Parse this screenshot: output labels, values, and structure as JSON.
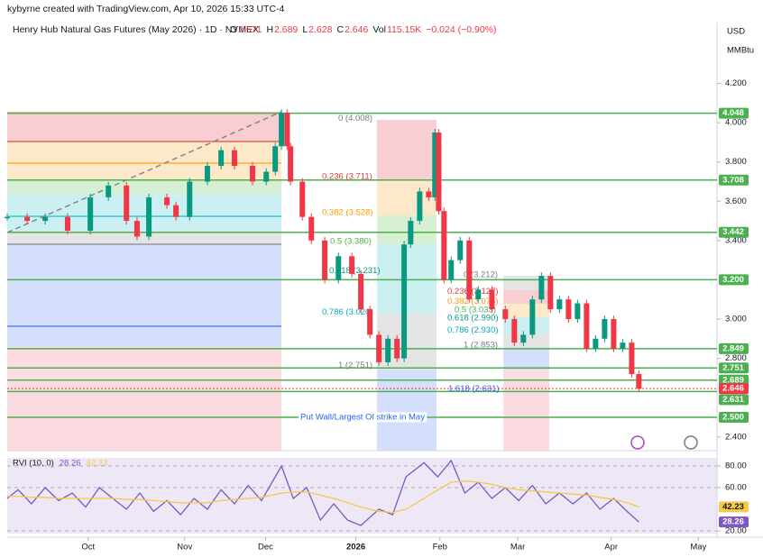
{
  "header": {
    "credit": "kybyrne created with TradingView.com, Apr 10, 2026 15:33 UTC-4",
    "symbol": "Henry Hub Natural Gas Futures (May 2026) · 1D · NYMEX",
    "ohlc": [
      {
        "label": "O",
        "value": "2.671"
      },
      {
        "label": "H",
        "value": "2.689"
      },
      {
        "label": "L",
        "value": "2.628"
      },
      {
        "label": "C",
        "value": "2.646"
      },
      {
        "label": "Vol",
        "value": "115.15K"
      },
      {
        "label": "",
        "value": "−0.024 (−0.90%)"
      }
    ],
    "currency": "USD",
    "unit": "MMBtu"
  },
  "chart_data": [
    {
      "type": "candle-line",
      "x": [
        0,
        6.4,
        12.2,
        19.4,
        26.7,
        32.5,
        38.3,
        41.7,
        45.5,
        51.3,
        54.2,
        58.6,
        64.3,
        68.7,
        73.0,
        78.8,
        83.2,
        86.1,
        88.1,
        89.9,
        91.0,
        94.8,
        97.7,
        102.0,
        106.4,
        110.7,
        113.6,
        116.5,
        119.4,
        122.3,
        125.2,
        127.5,
        129.6,
        132.5,
        135.4,
        137.4,
        138.6,
        140.3,
        142.6,
        145.5,
        148.4,
        151.3,
        155.7,
        160.0,
        162.9,
        165.8,
        168.7,
        171.6,
        174.5,
        177.4,
        180.3,
        183.2,
        186.1,
        189.0,
        191.9,
        194.8,
        197.7,
        200.6,
        202.9
      ],
      "values": [
        3.52,
        3.5,
        3.52,
        3.45,
        3.62,
        3.68,
        3.5,
        3.42,
        3.62,
        3.58,
        3.52,
        3.7,
        3.78,
        3.86,
        3.78,
        3.7,
        3.75,
        3.88,
        4.05,
        3.88,
        3.7,
        3.52,
        3.4,
        3.2,
        3.32,
        3.23,
        3.05,
        2.92,
        2.78,
        2.9,
        2.8,
        3.38,
        3.5,
        3.65,
        3.62,
        3.95,
        3.55,
        3.2,
        3.3,
        3.4,
        3.1,
        3.15,
        3.05,
        3.0,
        2.88,
        2.92,
        3.1,
        3.22,
        3.05,
        3.1,
        3.0,
        3.08,
        2.85,
        2.9,
        3.0,
        2.85,
        2.88,
        2.72,
        2.646
      ],
      "up_color": "#089981",
      "down_color": "#f23645",
      "xlim": [
        0,
        228
      ],
      "xticks": [
        {
          "value": 26,
          "label": "Oct"
        },
        {
          "value": 57,
          "label": "Nov"
        },
        {
          "value": 83,
          "label": "Dec"
        },
        {
          "value": 112,
          "label": "2026"
        },
        {
          "value": 139,
          "label": "Feb"
        },
        {
          "value": 164,
          "label": "Mar"
        },
        {
          "value": 194,
          "label": "Apr"
        },
        {
          "value": 222,
          "label": "May"
        }
      ],
      "ylim": [
        2.33,
        4.51
      ],
      "yticks": [
        {
          "value": 4.2,
          "label": "4.200"
        },
        {
          "value": 4.0,
          "label": "4.000"
        },
        {
          "value": 3.8,
          "label": "3.800"
        },
        {
          "value": 3.6,
          "label": "3.600"
        },
        {
          "value": 3.4,
          "label": "3.400"
        },
        {
          "value": 3.0,
          "label": "3.000"
        },
        {
          "value": 2.8,
          "label": "2.800"
        },
        {
          "value": 2.4,
          "label": "2.400"
        }
      ],
      "levels": [
        {
          "value": 4.048,
          "label": "4.048"
        },
        {
          "value": 3.708,
          "label": "3.708"
        },
        {
          "value": 3.442,
          "label": "3.442"
        },
        {
          "value": 3.2,
          "label": "3.200"
        },
        {
          "value": 2.849,
          "label": "2.849"
        },
        {
          "value": 2.751,
          "label": "2.751"
        },
        {
          "value": 2.689,
          "label": "2.689"
        },
        {
          "value": 2.631,
          "label": "2.631"
        },
        {
          "value": 2.5,
          "label": "2.500"
        }
      ],
      "level_color": "#4caf50",
      "current_price": {
        "value": 2.646,
        "label": "2.646",
        "color": "#f23645"
      },
      "annotations": [
        {
          "text": "0 (4.008)",
          "value": 4.008,
          "color": "#787b86"
        },
        {
          "text": "0.236 (3.711)",
          "value": 3.711,
          "color": "#e53935"
        },
        {
          "text": "0.382 (3.528)",
          "value": 3.528,
          "color": "#ff9800"
        },
        {
          "text": "0.5 (3.380)",
          "value": 3.38,
          "color": "#4caf50"
        },
        {
          "text": "0.618 (3.231)",
          "value": 3.231,
          "color": "#089981"
        },
        {
          "text": "0.786 (3.020)",
          "value": 3.02,
          "color": "#00acc1"
        },
        {
          "text": "1 (2.751)",
          "value": 2.751,
          "color": "#787b86"
        },
        {
          "text": "1.618 (2.631)",
          "value": 2.631,
          "color": "#2962ff"
        },
        {
          "text": "0 (3.212)",
          "value": 3.212,
          "color": "#787b86"
        },
        {
          "text": "0.236 (3.127)",
          "value": 3.127,
          "color": "#e53935"
        },
        {
          "text": "0.382 (3.075)",
          "value": 3.075,
          "color": "#ff9800"
        },
        {
          "text": "0.5 (3.033)",
          "value": 3.033,
          "color": "#4caf50"
        },
        {
          "text": "0.618 (2.990)",
          "value": 2.99,
          "color": "#089981"
        },
        {
          "text": "0.786 (2.930)",
          "value": 2.93,
          "color": "#00acc1"
        },
        {
          "text": "1 (2.853)",
          "value": 2.853,
          "color": "#787b86"
        },
        {
          "text": "Put Wall/Largest OI strike in May",
          "value": 2.5,
          "color": "#2962ff"
        }
      ]
    },
    {
      "type": "line",
      "title": "RVI (10, 0)",
      "x": [
        0,
        3.5,
        7.8,
        12.2,
        16.5,
        20.9,
        25.2,
        29.6,
        33.9,
        38.3,
        42.6,
        47.0,
        51.3,
        55.7,
        60.0,
        64.3,
        68.7,
        73.0,
        77.4,
        81.7,
        88.1,
        91.9,
        96.2,
        100.6,
        104.9,
        109.3,
        113.6,
        119.4,
        123.8,
        128.1,
        133.9,
        138.3,
        142.6,
        147.0,
        151.3,
        155.7,
        160.0,
        164.3,
        168.7,
        173.0,
        177.4,
        181.7,
        186.1,
        190.4,
        194.8,
        199.1,
        202.9
      ],
      "series": [
        {
          "name": "28.26",
          "color": "#7e57c2",
          "values": [
            50,
            58,
            45,
            60,
            48,
            55,
            42,
            60,
            50,
            40,
            55,
            38,
            48,
            35,
            50,
            40,
            58,
            45,
            62,
            48,
            80,
            50,
            60,
            30,
            45,
            30,
            25,
            40,
            35,
            70,
            83,
            70,
            85,
            55,
            65,
            50,
            60,
            48,
            62,
            45,
            55,
            45,
            55,
            40,
            50,
            38,
            28.26
          ]
        },
        {
          "name": "42.23",
          "color": "#f7c948",
          "values": [
            52,
            52,
            51,
            51,
            50,
            50,
            50,
            50,
            50,
            49,
            49,
            48,
            47,
            46,
            46,
            46,
            48,
            49,
            50,
            51,
            55,
            56,
            56,
            53,
            50,
            46,
            42,
            38,
            37,
            40,
            50,
            58,
            65,
            66,
            65,
            63,
            60,
            58,
            57,
            56,
            55,
            54,
            53,
            51,
            49,
            46,
            42.23
          ]
        }
      ],
      "xlim": [
        0,
        228
      ],
      "ylim": [
        17.5,
        87.5
      ],
      "yticks": [
        {
          "value": 80,
          "label": "80.00"
        },
        {
          "value": 60,
          "label": "60.00"
        },
        {
          "value": 20,
          "label": "20.00"
        }
      ]
    }
  ]
}
